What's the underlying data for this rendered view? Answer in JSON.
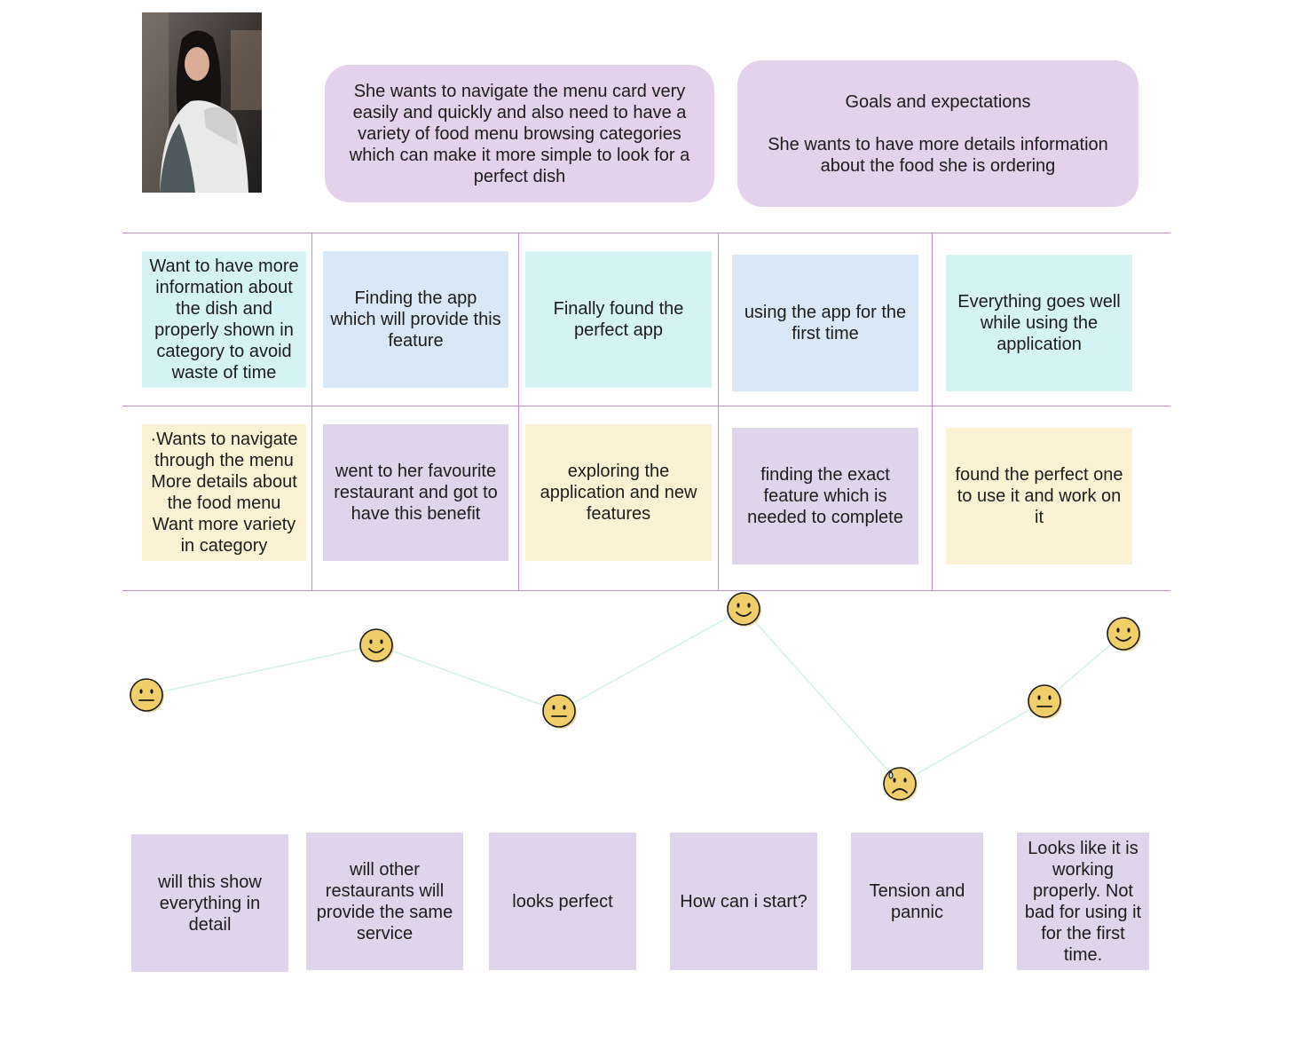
{
  "persona": {
    "photo_alt": "persona-photo"
  },
  "header": {
    "need_text": "She wants to navigate the menu card very easily and quickly and also need to have a variety of food menu browsing categories which can make it more simple to look for a perfect dish",
    "goals_title": "Goals and expectations",
    "goals_text": "She wants to have more details information about the food she is ordering"
  },
  "stages": [
    {
      "action": "Want to have more information about the dish and properly shown in category to avoid waste of time",
      "touchpoint": "·Wants to navigate through the menu More details about the food menu Want more variety in category",
      "thought": "will this show everything in detail",
      "emotion": "neutral"
    },
    {
      "action": "Finding the app which will provide this feature",
      "touchpoint": "went to her favourite restaurant and got to have this benefit",
      "thought": "will other restaurants will provide the same service",
      "emotion": "happy"
    },
    {
      "action": "Finally found the perfect app",
      "touchpoint": "exploring the application and new features",
      "thought": "looks perfect",
      "emotion": "neutral"
    },
    {
      "action": "using the app for the first time",
      "touchpoint": "finding the exact feature which is needed to complete",
      "thought": "How can i start?",
      "emotion": "happy"
    },
    {
      "action": "Everything goes well while using the application",
      "touchpoint": "found the perfect one to use it and work on it",
      "thought": "Tension and pannic",
      "emotion": "sad"
    },
    {
      "thought": "Looks like it is working properly. Not bad for using it for the first time.",
      "emotion": "neutral"
    }
  ],
  "emotion_curve": {
    "faces": [
      "neutral",
      "happy",
      "neutral",
      "happy",
      "sad",
      "neutral",
      "happy"
    ],
    "line_color": "#d4efec",
    "face_color": "#f0cf6a"
  },
  "colors": {
    "bubble": "#e4d1ec",
    "grid_line": "#c98ccf",
    "cyan_note": "#d6f3f4",
    "blue_note": "#d9e8f7",
    "yellow_note": "#fbf2d3",
    "lavender_note": "#ded5ec"
  }
}
